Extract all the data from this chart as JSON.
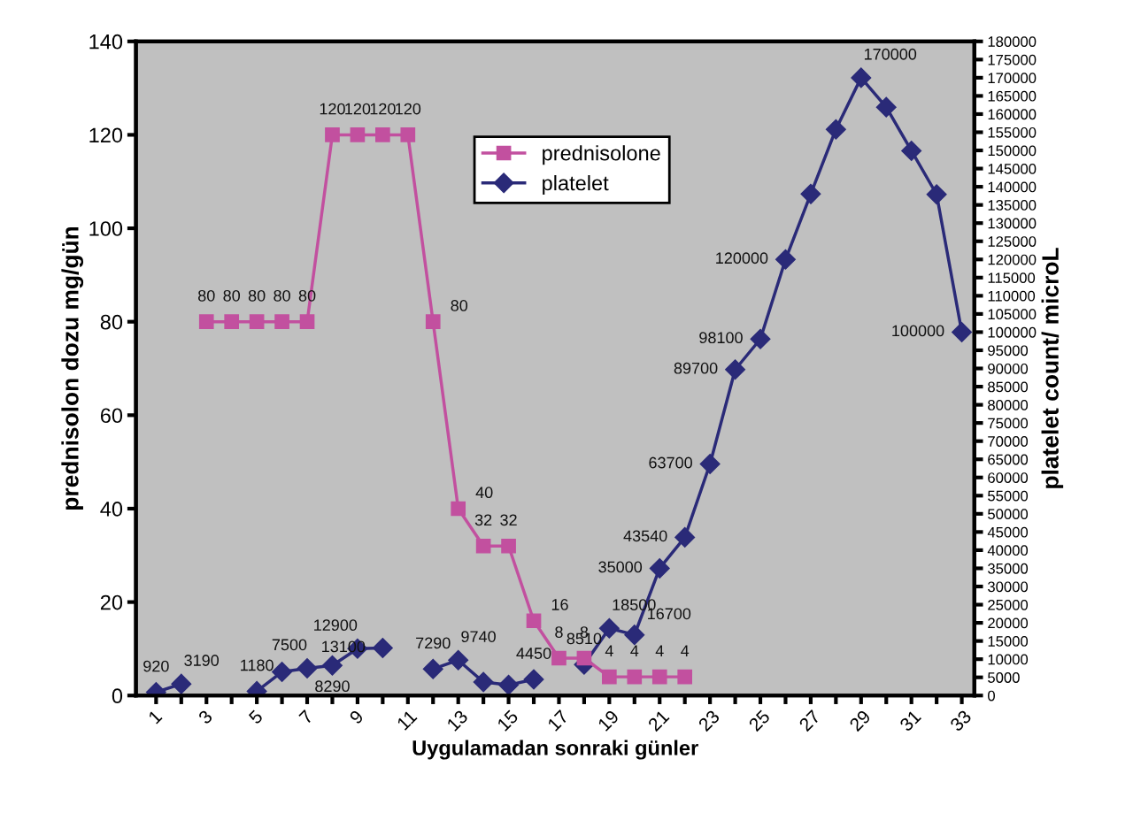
{
  "chart_data": {
    "type": "line",
    "xlabel": "Uygulamadan sonraki günler",
    "ylabel": "prednisolon dozu mg/gün",
    "y2label": "platelet count/ microL",
    "x": [
      1,
      2,
      3,
      4,
      5,
      6,
      7,
      8,
      9,
      10,
      11,
      12,
      13,
      14,
      15,
      16,
      17,
      18,
      19,
      20,
      21,
      22,
      23,
      24,
      25,
      26,
      27,
      28,
      29,
      30,
      31,
      32,
      33
    ],
    "xlim": [
      0.2,
      33.5
    ],
    "xticks": [
      1,
      {
        "value": 2,
        "label": null
      },
      3,
      {
        "value": 4,
        "label": null
      },
      5,
      {
        "value": 6,
        "label": null
      },
      7,
      {
        "value": 8,
        "label": null
      },
      9,
      {
        "value": 10,
        "label": null
      },
      11,
      {
        "value": 12,
        "label": null
      },
      13,
      {
        "value": 14,
        "label": null
      },
      15,
      {
        "value": 16,
        "label": null
      },
      17,
      {
        "value": 18,
        "label": null
      },
      19,
      {
        "value": 20,
        "label": null
      },
      21,
      {
        "value": 22,
        "label": null
      },
      23,
      {
        "value": 24,
        "label": null
      },
      25,
      {
        "value": 26,
        "label": null
      },
      27,
      {
        "value": 28,
        "label": null
      },
      29,
      {
        "value": 30,
        "label": null
      },
      31,
      {
        "value": 32,
        "label": null
      },
      33
    ],
    "ylim": [
      0,
      140
    ],
    "yticks": [
      0,
      20,
      40,
      60,
      80,
      100,
      120,
      140
    ],
    "y2lim": [
      0,
      180000
    ],
    "y2ticks": [
      0,
      5000,
      10000,
      15000,
      20000,
      25000,
      30000,
      35000,
      40000,
      45000,
      50000,
      55000,
      60000,
      65000,
      70000,
      75000,
      80000,
      85000,
      90000,
      95000,
      100000,
      105000,
      110000,
      115000,
      120000,
      125000,
      130000,
      135000,
      140000,
      145000,
      150000,
      155000,
      160000,
      165000,
      170000,
      175000,
      180000
    ],
    "grid": false,
    "legend": "top",
    "series": [
      {
        "name": "prednisolone",
        "color": "#c2509f",
        "marker": "square",
        "values": [
          null,
          null,
          80,
          80,
          80,
          80,
          80,
          120,
          120,
          120,
          120,
          80,
          40,
          32,
          32,
          16,
          8,
          8,
          4,
          4,
          4,
          4,
          null,
          null,
          null,
          null,
          null,
          null,
          null,
          null,
          null,
          null,
          null
        ],
        "value_labels": [
          null,
          null,
          "80",
          "80",
          "80",
          "80",
          "80",
          "120",
          "120",
          "120",
          "120",
          "80",
          "40",
          "32",
          "32",
          "16",
          "8",
          "8",
          "4",
          "4",
          "4",
          "4",
          null,
          null,
          null,
          null,
          null,
          null,
          null,
          null,
          null,
          null,
          null
        ]
      },
      {
        "name": "platelet",
        "color": "#2a2a78",
        "marker": "diamond",
        "axis": "y2",
        "values": [
          920,
          3190,
          null,
          null,
          1180,
          6500,
          7500,
          8290,
          12900,
          13100,
          null,
          7290,
          9740,
          3700,
          2900,
          4450,
          null,
          8510,
          18500,
          16700,
          35000,
          43540,
          63700,
          89700,
          98100,
          120000,
          138000,
          155800,
          170000,
          161900,
          149900,
          137900,
          100000
        ],
        "value_labels": [
          "920",
          "3190",
          null,
          null,
          "1180",
          null,
          "7500",
          "8290",
          "12900",
          "13100",
          null,
          "7290",
          "9740",
          null,
          null,
          "4450",
          null,
          "8510",
          "18500",
          "16700",
          "35000",
          "43540",
          "63700",
          "89700",
          "98100",
          "120000",
          null,
          null,
          "170000",
          null,
          null,
          null,
          "100000"
        ]
      }
    ]
  }
}
